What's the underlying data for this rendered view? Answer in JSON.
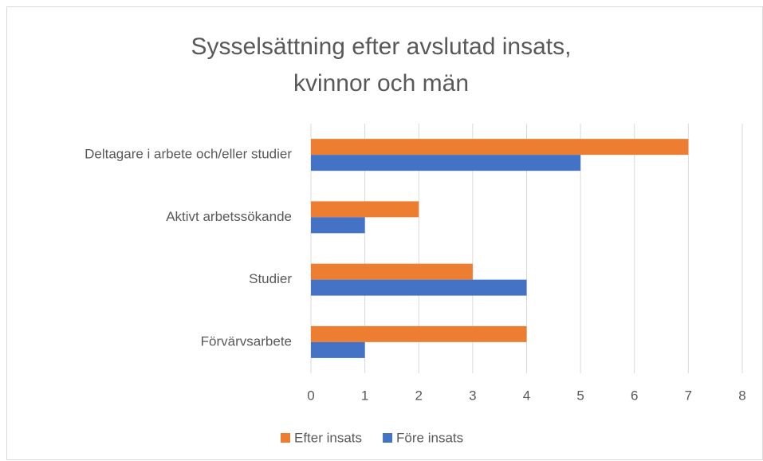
{
  "chart_data": {
    "type": "bar",
    "orientation": "horizontal",
    "title": "Sysselsättning efter avslutad insats, kvinnor och män",
    "categories": [
      "Deltagare i arbete och/eller studier",
      "Aktivt arbetssökande",
      "Studier",
      "Förvärvsarbete"
    ],
    "series": [
      {
        "name": "Efter insats",
        "color": "#ed7d31",
        "values": [
          7,
          2,
          3,
          4
        ]
      },
      {
        "name": "Före insats",
        "color": "#4472c4",
        "values": [
          5,
          1,
          4,
          1
        ]
      }
    ],
    "xlim": [
      0,
      8
    ],
    "xticks": [
      0,
      1,
      2,
      3,
      4,
      5,
      6,
      7,
      8
    ],
    "grid": true,
    "legend": "bottom"
  }
}
